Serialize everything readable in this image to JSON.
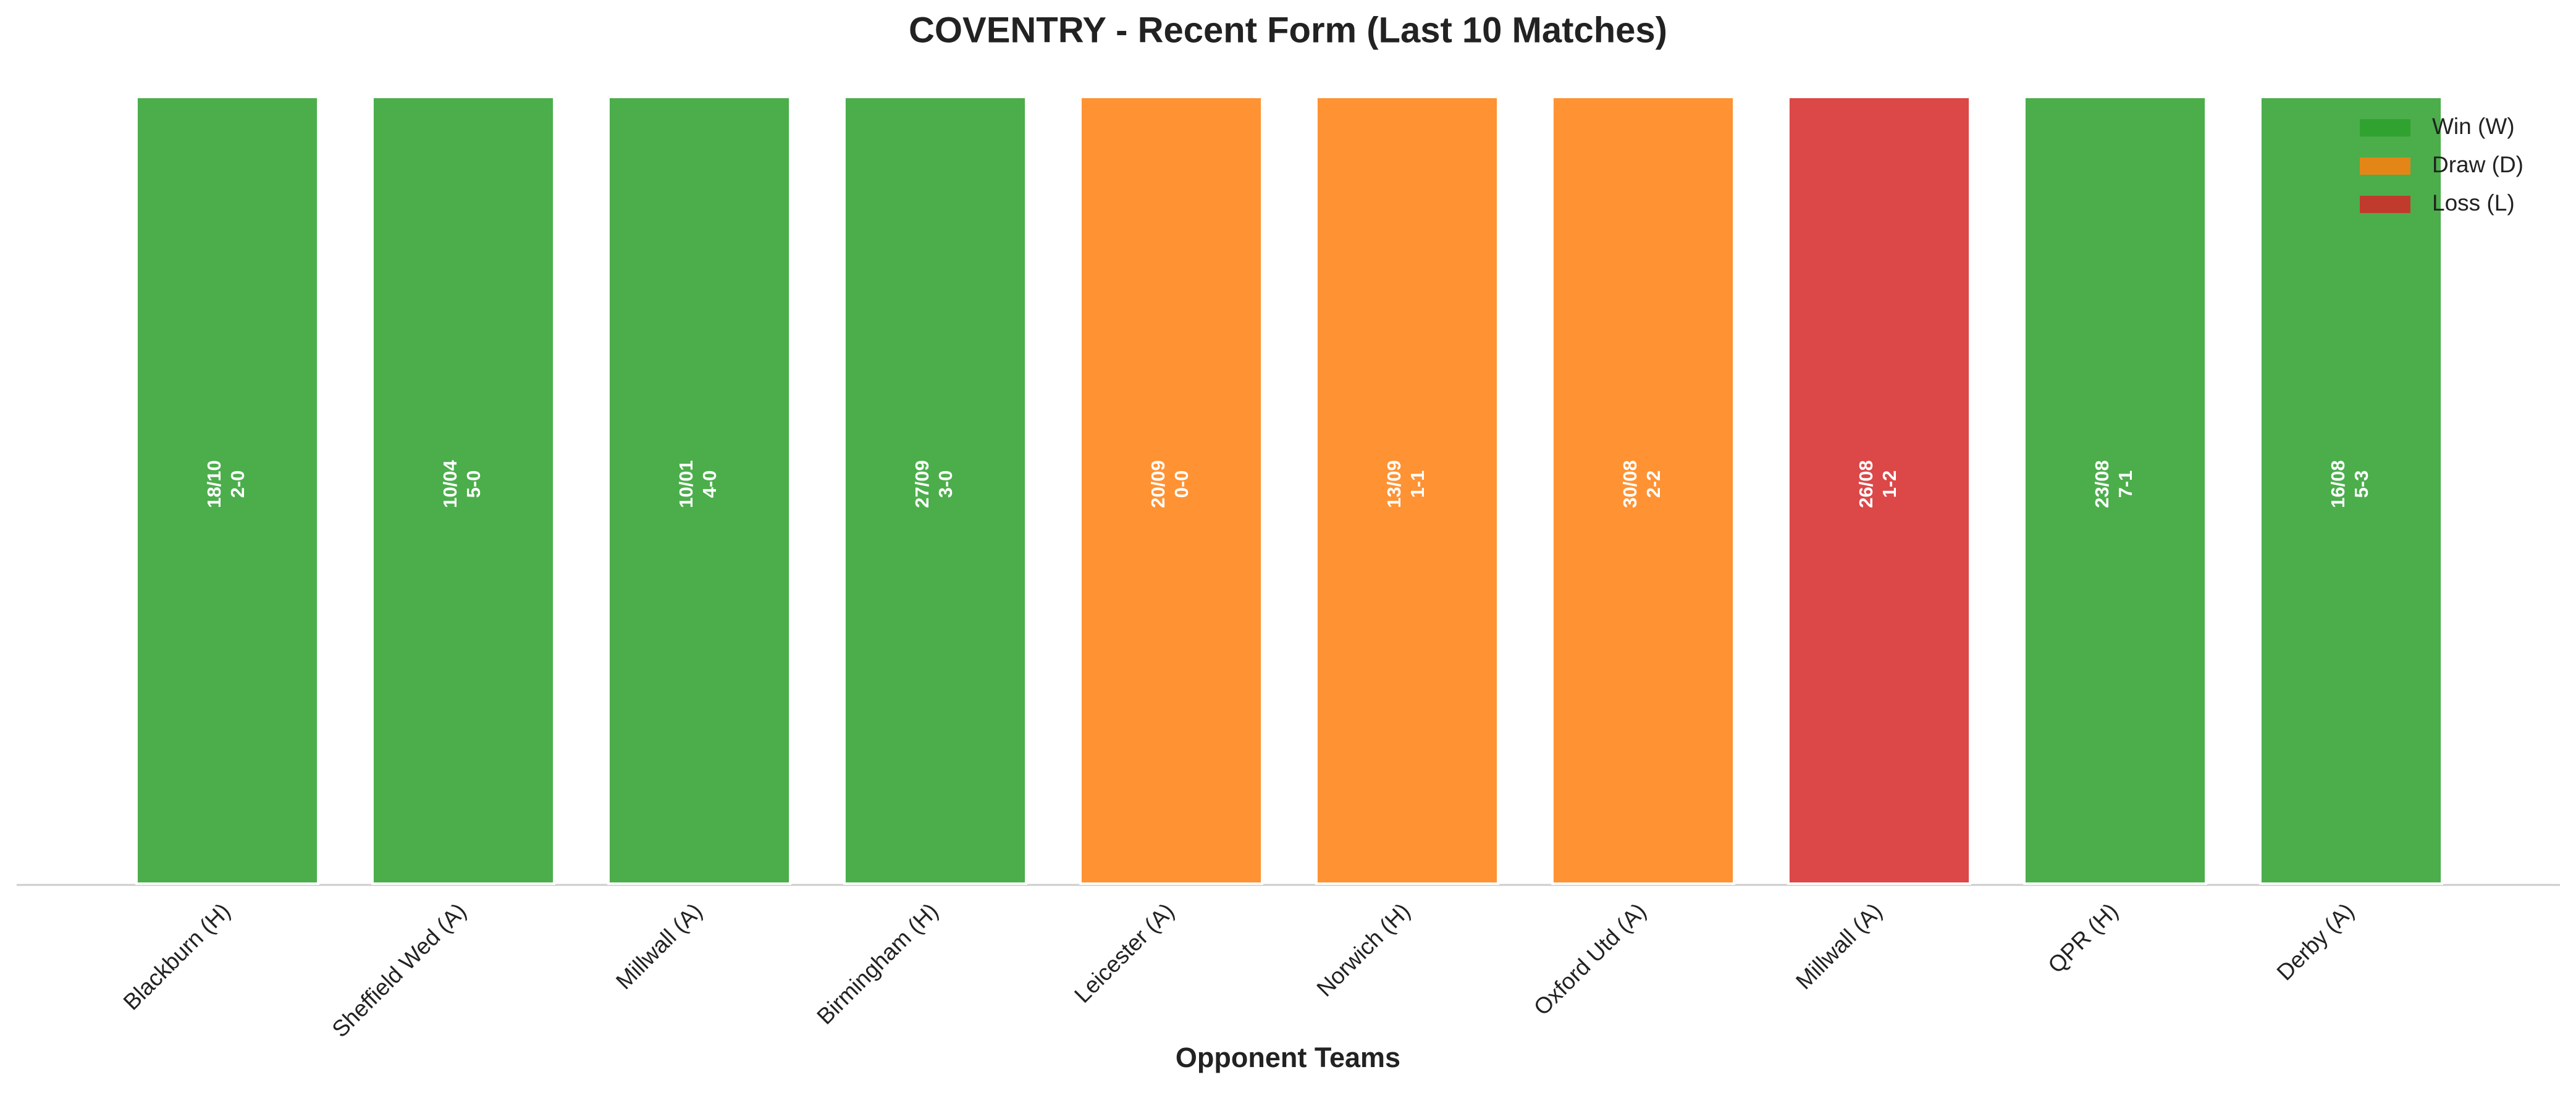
{
  "chart_data": {
    "type": "bar",
    "title": "COVENTRY - Recent Form (Last 10 Matches)",
    "x_label": "Opponent Teams",
    "categories": [
      "Blackburn (H)",
      "Sheffield Wed (A)",
      "Millwall (A)",
      "Birmingham (H)",
      "Leicester (A)",
      "Norwich (H)",
      "Oxford Utd (A)",
      "Millwall (A)",
      "QPR (H)",
      "Derby (A)"
    ],
    "dates": [
      "18/10",
      "10/04",
      "10/01",
      "27/09",
      "20/09",
      "13/09",
      "30/08",
      "26/08",
      "23/08",
      "16/08"
    ],
    "scores": [
      "2-0",
      "5-0",
      "4-0",
      "3-0",
      "0-0",
      "1-1",
      "2-2",
      "1-2",
      "7-1",
      "5-3"
    ],
    "series": [
      {
        "name": "Win (W)",
        "color": "#2ca02c",
        "values": [
          1,
          1,
          1,
          1,
          null,
          null,
          null,
          null,
          1,
          1
        ]
      },
      {
        "name": "Draw (D)",
        "color": "#ff7f0e",
        "values": [
          null,
          null,
          null,
          null,
          1,
          1,
          1,
          null,
          null,
          null
        ]
      },
      {
        "name": "Loss (L)",
        "color": "#d62728",
        "values": [
          null,
          null,
          null,
          null,
          null,
          null,
          null,
          1,
          null,
          null
        ]
      }
    ],
    "ylim": [
      0,
      1
    ],
    "legend": "upper right"
  }
}
